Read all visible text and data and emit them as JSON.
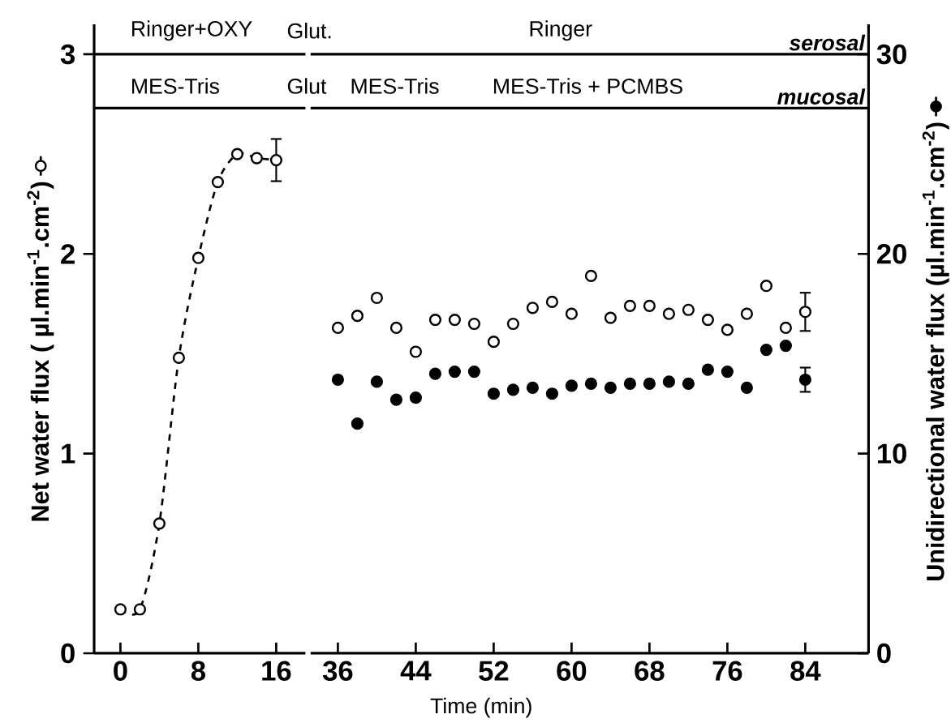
{
  "chart_data": [
    {
      "type": "line",
      "ylabel": "Net water flux ( µl.min$^{-1}$.cm$^{-2}$)",
      "xlim": [
        -2.7,
        19
      ],
      "xticks": [
        0,
        8,
        16
      ],
      "ylim": [
        0,
        3.15
      ],
      "yticks": [
        0,
        1,
        2,
        3
      ],
      "x": [
        0,
        2,
        4,
        6,
        8,
        10,
        12,
        14,
        16
      ],
      "series": [
        {
          "color": "#000000",
          "values": [
            0.22,
            0.22,
            0.65,
            1.48,
            1.98,
            2.36,
            2.5,
            2.48,
            2.47
          ],
          "errors": [
            null,
            null,
            null,
            null,
            null,
            null,
            null,
            null,
            0.11
          ]
        }
      ],
      "marker": "circle",
      "line_style": "dashed",
      "ref_lines": [
        {
          "axis": "y",
          "value": 3.0
        },
        {
          "axis": "y",
          "value": 2.73
        }
      ],
      "annotations": [
        "Ringer+OXY",
        "Glut.",
        "MES-Tris",
        "Glut"
      ]
    },
    {
      "type": "scatter",
      "xlabel": "Time (min)",
      "y2label": "Unidirectional water flux (µl.min$^{-1}$.cm$^{-2}$)",
      "xlim": [
        33.2,
        90.5
      ],
      "xticks": [
        36,
        44,
        52,
        60,
        68,
        76,
        84
      ],
      "ylim": [
        0,
        3.15
      ],
      "y2lim": [
        0,
        31.5
      ],
      "y2ticks": [
        0,
        10,
        20,
        30
      ],
      "x": [
        36,
        38,
        40,
        42,
        44,
        46,
        48,
        50,
        52,
        54,
        56,
        58,
        60,
        62,
        64,
        66,
        68,
        70,
        72,
        74,
        76,
        78,
        80,
        82,
        84
      ],
      "series": [
        {
          "color": "#000000",
          "axis": "y",
          "values": [
            1.63,
            1.69,
            1.78,
            1.63,
            1.51,
            1.67,
            1.67,
            1.65,
            1.56,
            1.65,
            1.73,
            1.76,
            1.7,
            1.89,
            1.68,
            1.74,
            1.74,
            1.7,
            1.72,
            1.67,
            1.62,
            1.7,
            1.84,
            1.63,
            1.71
          ],
          "errors": [
            null,
            null,
            null,
            null,
            null,
            null,
            null,
            null,
            null,
            null,
            null,
            null,
            null,
            null,
            null,
            null,
            null,
            null,
            null,
            null,
            null,
            null,
            null,
            null,
            0.1
          ]
        },
        {
          "color": "#000000",
          "axis": "y2",
          "values": [
            13.7,
            11.5,
            13.6,
            12.7,
            12.8,
            14.0,
            14.1,
            14.1,
            13.0,
            13.2,
            13.3,
            13.0,
            13.4,
            13.5,
            13.3,
            13.5,
            13.5,
            13.6,
            13.5,
            14.2,
            14.1,
            13.3,
            15.2,
            15.4,
            13.7
          ],
          "errors": [
            null,
            null,
            null,
            null,
            null,
            null,
            null,
            null,
            null,
            null,
            null,
            null,
            null,
            null,
            null,
            null,
            null,
            null,
            null,
            null,
            null,
            null,
            null,
            null,
            0.65
          ]
        }
      ],
      "marker": "circle",
      "ref_lines": [
        {
          "axis": "y",
          "value": 3.0,
          "label": "serosal"
        },
        {
          "axis": "y",
          "value": 2.73,
          "label": "mucosal"
        }
      ],
      "annotations": [
        "Ringer",
        "MES-Tris",
        "MES-Tris + PCMBS"
      ]
    }
  ]
}
